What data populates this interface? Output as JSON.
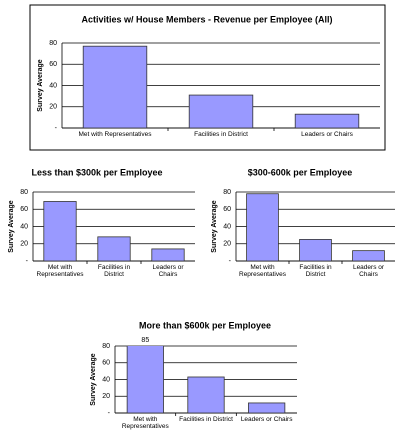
{
  "chart_data": [
    {
      "type": "bar",
      "title": "Activities w/ House Members - Revenue per Employee (All)",
      "y_label": "Survey Average",
      "categories": [
        "Met with Representatives",
        "Facilities in District",
        "Leaders or Chairs"
      ],
      "values": [
        77,
        31,
        13
      ],
      "color": "#9999ff",
      "ylim": [
        0,
        80
      ],
      "yticks": [
        {
          "value": 0,
          "label": "-"
        },
        20,
        40,
        60,
        80
      ],
      "grid": true
    },
    {
      "type": "bar",
      "title": "Less than $300k per Employee",
      "y_label": "Survey Average",
      "categories": [
        "Met with Representatives",
        "Facilities in District",
        "Leaders or Chairs"
      ],
      "values": [
        69,
        28,
        14
      ],
      "color": "#9999ff",
      "ylim": [
        0,
        80
      ],
      "yticks": [
        {
          "value": 0,
          "label": "-"
        },
        20,
        40,
        60,
        80
      ],
      "grid": true
    },
    {
      "type": "bar",
      "title": "$300-600k per Employee",
      "y_label": "Survey Average",
      "categories": [
        "Met with Representatives",
        "Facilities in District",
        "Leaders or Chairs"
      ],
      "values": [
        78,
        25,
        12
      ],
      "color": "#9999ff",
      "ylim": [
        0,
        80
      ],
      "yticks": [
        {
          "value": 0,
          "label": "-"
        },
        20,
        40,
        60,
        80
      ],
      "grid": true
    },
    {
      "type": "bar",
      "title": "More than $600k per Employee",
      "y_label": "Survey Average",
      "categories": [
        "Met with Representatives",
        "Facilities in District",
        "Leaders or Chairs"
      ],
      "values": [
        85,
        43,
        12
      ],
      "value_labels": [
        "85",
        null,
        null
      ],
      "color": "#9999ff",
      "ylim": [
        0,
        80
      ],
      "yticks": [
        {
          "value": 0,
          "label": "-"
        },
        20,
        40,
        60,
        80
      ],
      "grid": true
    }
  ]
}
